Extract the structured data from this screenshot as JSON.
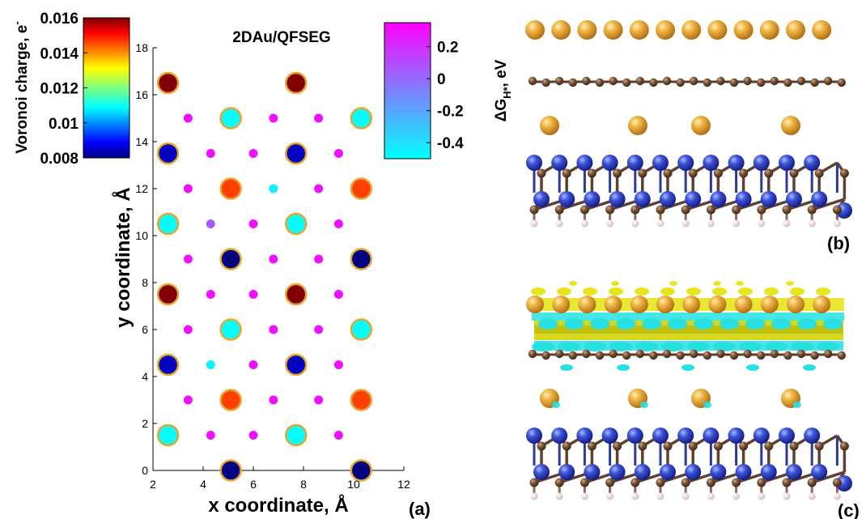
{
  "chart_data": [
    {
      "panel": "(a)",
      "type": "scatter",
      "title": "2DAu/QFSEG",
      "xlabel": "x coordinate, Å",
      "ylabel": "y coordinate, Å",
      "xlim": [
        2,
        12
      ],
      "ylim": [
        0,
        18
      ],
      "xticks": [
        "2",
        "4",
        "6",
        "8",
        "10",
        "12"
      ],
      "yticks": [
        "0",
        "2",
        "4",
        "6",
        "8",
        "10",
        "12",
        "14",
        "16",
        "18"
      ],
      "grid": false,
      "colorbars": [
        {
          "label": "Voronoi charge, e⁻",
          "label_text": "Voronoi charge, e",
          "label_sup": "-",
          "colormap": "jet",
          "range": [
            0.008,
            0.016
          ],
          "ticks": [
            "0.016",
            "0.014",
            "0.012",
            "0.01",
            "0.008"
          ],
          "tick_values": [
            0.016,
            0.014,
            0.012,
            0.01,
            0.008
          ],
          "placement": "top-left"
        },
        {
          "label": "ΔG_H*, eV",
          "label_main": "ΔG",
          "label_sub": "H*",
          "label_tail": ", eV",
          "colormap": "cool",
          "range": [
            -0.5,
            0.35
          ],
          "ticks": [
            "0.2",
            "0",
            "-0.2",
            "-0.4"
          ],
          "tick_values": [
            0.2,
            0,
            -0.2,
            -0.4
          ],
          "placement": "top-right"
        }
      ],
      "series": [
        {
          "role": "Au sites (Voronoi charge)",
          "points": [
            {
              "x": 2.6,
              "y": 16.5,
              "v": 0.016
            },
            {
              "x": 7.7,
              "y": 16.5,
              "v": 0.016
            },
            {
              "x": 5.1,
              "y": 15.0,
              "v": 0.011
            },
            {
              "x": 10.3,
              "y": 15.0,
              "v": 0.011
            },
            {
              "x": 2.6,
              "y": 13.5,
              "v": 0.0085
            },
            {
              "x": 7.7,
              "y": 13.5,
              "v": 0.0085
            },
            {
              "x": 5.1,
              "y": 12.0,
              "v": 0.0145
            },
            {
              "x": 10.3,
              "y": 12.0,
              "v": 0.0145
            },
            {
              "x": 2.6,
              "y": 10.5,
              "v": 0.011
            },
            {
              "x": 7.7,
              "y": 10.5,
              "v": 0.011
            },
            {
              "x": 5.1,
              "y": 9.0,
              "v": 0.008
            },
            {
              "x": 10.3,
              "y": 9.0,
              "v": 0.008
            },
            {
              "x": 2.6,
              "y": 7.5,
              "v": 0.016
            },
            {
              "x": 7.7,
              "y": 7.5,
              "v": 0.016
            },
            {
              "x": 5.1,
              "y": 6.0,
              "v": 0.011
            },
            {
              "x": 10.3,
              "y": 6.0,
              "v": 0.011
            },
            {
              "x": 2.6,
              "y": 4.5,
              "v": 0.0085
            },
            {
              "x": 7.7,
              "y": 4.5,
              "v": 0.0085
            },
            {
              "x": 5.1,
              "y": 3.0,
              "v": 0.0145
            },
            {
              "x": 10.3,
              "y": 3.0,
              "v": 0.0145
            },
            {
              "x": 2.6,
              "y": 1.5,
              "v": 0.011
            },
            {
              "x": 7.7,
              "y": 1.5,
              "v": 0.011
            },
            {
              "x": 5.1,
              "y": 0.0,
              "v": 0.008
            },
            {
              "x": 10.3,
              "y": 0.0,
              "v": 0.008
            }
          ]
        },
        {
          "role": "H adsorption sites (ΔG_H*)",
          "points": [
            {
              "x": 3.4,
              "y": 15.0,
              "v": 0.3
            },
            {
              "x": 6.8,
              "y": 15.0,
              "v": 0.3
            },
            {
              "x": 8.6,
              "y": 15.0,
              "v": 0.3
            },
            {
              "x": 4.3,
              "y": 13.5,
              "v": 0.3
            },
            {
              "x": 6.0,
              "y": 13.5,
              "v": 0.3
            },
            {
              "x": 9.4,
              "y": 13.5,
              "v": 0.3
            },
            {
              "x": 3.4,
              "y": 12.0,
              "v": 0.3
            },
            {
              "x": 6.8,
              "y": 12.0,
              "v": -0.45
            },
            {
              "x": 8.6,
              "y": 12.0,
              "v": 0.3
            },
            {
              "x": 4.3,
              "y": 10.5,
              "v": 0.05
            },
            {
              "x": 6.0,
              "y": 10.5,
              "v": 0.3
            },
            {
              "x": 9.4,
              "y": 10.5,
              "v": 0.3
            },
            {
              "x": 3.4,
              "y": 9.0,
              "v": 0.3
            },
            {
              "x": 6.8,
              "y": 9.0,
              "v": 0.3
            },
            {
              "x": 8.6,
              "y": 9.0,
              "v": 0.3
            },
            {
              "x": 4.3,
              "y": 7.5,
              "v": 0.3
            },
            {
              "x": 6.0,
              "y": 7.5,
              "v": 0.3
            },
            {
              "x": 9.4,
              "y": 7.5,
              "v": 0.3
            },
            {
              "x": 3.4,
              "y": 6.0,
              "v": 0.3
            },
            {
              "x": 6.8,
              "y": 6.0,
              "v": 0.3
            },
            {
              "x": 8.6,
              "y": 6.0,
              "v": 0.3
            },
            {
              "x": 4.3,
              "y": 4.5,
              "v": -0.45
            },
            {
              "x": 6.0,
              "y": 4.5,
              "v": 0.3
            },
            {
              "x": 9.4,
              "y": 4.5,
              "v": 0.3
            },
            {
              "x": 3.4,
              "y": 3.0,
              "v": 0.3
            },
            {
              "x": 6.8,
              "y": 3.0,
              "v": 0.3
            },
            {
              "x": 8.6,
              "y": 3.0,
              "v": 0.3
            },
            {
              "x": 4.3,
              "y": 1.5,
              "v": 0.3
            },
            {
              "x": 6.0,
              "y": 1.5,
              "v": 0.3
            },
            {
              "x": 9.4,
              "y": 1.5,
              "v": 0.3
            }
          ]
        }
      ]
    },
    {
      "panel": "(b)",
      "type": "structure",
      "layers": [
        "Au monolayer",
        "graphene",
        "intercalated Au",
        "SiC bilayer",
        "H termination"
      ]
    },
    {
      "panel": "(c)",
      "type": "structure",
      "layers": [
        "charge density difference isosurface",
        "Au monolayer",
        "graphene",
        "intercalated Au",
        "SiC bilayer",
        "H termination"
      ]
    }
  ],
  "panel_labels": {
    "a": "(a)",
    "b": "(b)",
    "c": "(c)"
  },
  "colors": {
    "au_atom": "#e0a030",
    "au_outline": "#e8a631",
    "carbon": "#7a5236",
    "silicon": "#3048d0",
    "hydrogen": "#f0d8dc",
    "iso_yellow": "#e6e61e",
    "iso_cyan": "#28e0e0"
  }
}
